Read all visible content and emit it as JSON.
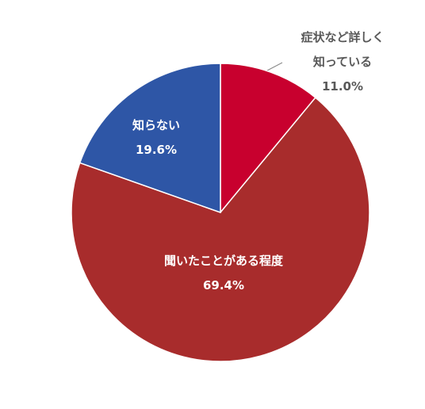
{
  "chart_data": {
    "type": "pie",
    "categories": [
      "症状など詳しく知っている",
      "聞いたことがある程度",
      "知らない"
    ],
    "values": [
      11.0,
      69.4,
      19.6
    ],
    "value_labels": [
      "11.0%",
      "69.4%",
      "19.6%"
    ],
    "colors": [
      "#c8002e",
      "#a82c2c",
      "#2e56a6"
    ]
  }
}
